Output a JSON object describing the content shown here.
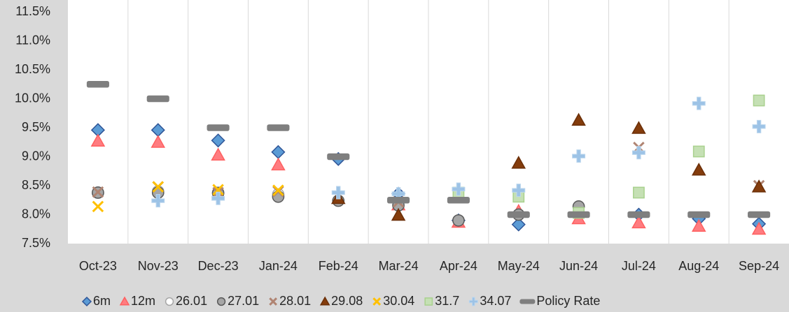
{
  "chart_data": {
    "type": "scatter",
    "categories": [
      "Oct-23",
      "Nov-23",
      "Dec-23",
      "Jan-24",
      "Feb-24",
      "Mar-24",
      "Apr-24",
      "May-24",
      "Jun-24",
      "Jul-24",
      "Aug-24",
      "Sep-24"
    ],
    "ylim": [
      7.5,
      11.5
    ],
    "yticks": [
      {
        "value": 7.5,
        "label": "7.5%"
      },
      {
        "value": 8.0,
        "label": "8.0%"
      },
      {
        "value": 8.5,
        "label": "8.5%"
      },
      {
        "value": 9.0,
        "label": "9.0%"
      },
      {
        "value": 9.5,
        "label": "9.5%"
      },
      {
        "value": 10.0,
        "label": "10.0%"
      },
      {
        "value": 10.5,
        "label": "10.5%"
      },
      {
        "value": 11.0,
        "label": "11.0%"
      },
      {
        "value": 11.5,
        "label": "11.5%"
      }
    ],
    "grid": false,
    "legend": "bottom",
    "series": [
      {
        "name": "6m",
        "marker": "diamond",
        "color": "#5b9bd5",
        "stroke": "#2f5597",
        "values": [
          9.46,
          9.46,
          9.28,
          9.08,
          8.96,
          8.36,
          7.9,
          7.83,
          8.0,
          8.0,
          7.93,
          7.84
        ]
      },
      {
        "name": "12m",
        "marker": "triangle",
        "color": "#ff7c80",
        "stroke": "#ff6060",
        "values": [
          9.27,
          9.25,
          9.03,
          8.86,
          null,
          8.17,
          7.87,
          8.06,
          7.93,
          7.86,
          7.8,
          7.75
        ]
      },
      {
        "name": "26.01",
        "marker": "circle",
        "color": "#ffffff",
        "stroke": "#a6a6a6",
        "values": [
          8.38,
          8.4,
          8.38,
          8.35,
          null,
          null,
          null,
          null,
          null,
          null,
          null,
          null
        ]
      },
      {
        "name": "27.01",
        "marker": "circle",
        "color": "#a6a6a6",
        "stroke": "#595959",
        "values": [
          8.38,
          8.38,
          8.37,
          8.31,
          8.24,
          8.16,
          7.9,
          8.0,
          8.14,
          null,
          null,
          null
        ]
      },
      {
        "name": "28.01",
        "marker": "x",
        "color": "#c9a594",
        "stroke": "#b08472",
        "values": [
          8.39,
          8.48,
          8.38,
          8.4,
          null,
          8.22,
          null,
          null,
          null,
          9.16,
          null,
          8.5
        ]
      },
      {
        "name": "29.08",
        "marker": "triangle",
        "color": "#843c0c",
        "stroke": "#6b2f08",
        "values": [
          null,
          null,
          null,
          null,
          8.28,
          7.99,
          null,
          8.89,
          9.63,
          9.49,
          8.77,
          8.48
        ]
      },
      {
        "name": "30.04",
        "marker": "x",
        "color": "#ffd400",
        "stroke": "#ffc000",
        "values": [
          8.14,
          8.48,
          8.43,
          8.42,
          null,
          null,
          null,
          null,
          null,
          null,
          null,
          null
        ]
      },
      {
        "name": "31.7",
        "marker": "square",
        "color": "#c5e0b4",
        "stroke": "#a9d18e",
        "values": [
          null,
          null,
          null,
          null,
          null,
          null,
          8.38,
          8.31,
          8.03,
          8.38,
          9.09,
          9.97
        ]
      },
      {
        "name": "34.07",
        "marker": "cross",
        "color": "#9dc3e6",
        "stroke": "#9dc3e6",
        "values": [
          null,
          8.24,
          8.28,
          null,
          8.38,
          8.36,
          8.44,
          8.42,
          9.01,
          9.07,
          9.92,
          9.52
        ]
      },
      {
        "name": "Policy Rate",
        "marker": "dash",
        "color": "#7f7f7f",
        "stroke": "#7f7f7f",
        "values": [
          10.25,
          10.0,
          9.5,
          9.5,
          9.0,
          8.25,
          8.25,
          8.0,
          8.0,
          8.0,
          8.0,
          8.0
        ]
      }
    ]
  }
}
